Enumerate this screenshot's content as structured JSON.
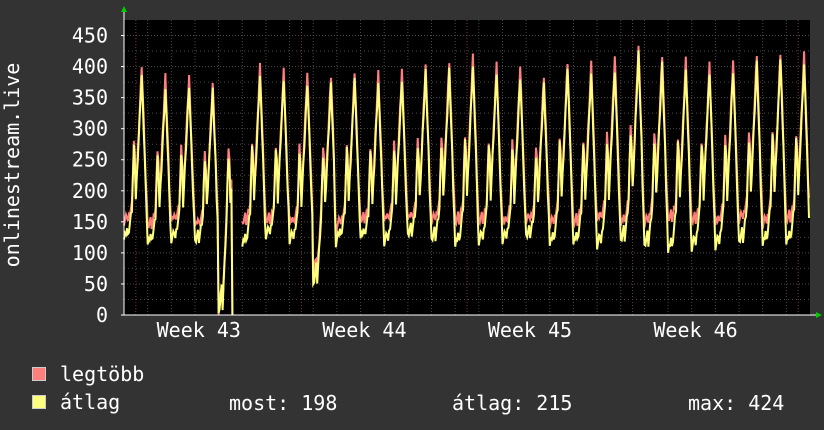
{
  "chart_data": {
    "type": "line",
    "ylabel": "onlinestream.live",
    "ylim": [
      0,
      475
    ],
    "yticks": [
      0,
      50,
      100,
      150,
      200,
      250,
      300,
      350,
      400,
      450
    ],
    "xtick_labels": [
      "Week 43",
      "Week 44",
      "Week 45",
      "Week 46"
    ],
    "grid": true,
    "days_shown": 29,
    "series": [
      {
        "name": "legtöbb",
        "color": "#ff7f7f",
        "day_peaks": [
          405,
          385,
          385,
          375,
          385,
          400,
          395,
          390,
          385,
          395,
          390,
          395,
          405,
          410,
          415,
          405,
          400,
          385,
          410,
          405,
          415,
          435,
          420,
          410,
          405,
          410,
          420,
          425,
          420
        ],
        "day_troughs": [
          150,
          140,
          150,
          145,
          0,
          145,
          150,
          145,
          60,
          145,
          150,
          150,
          155,
          150,
          145,
          150,
          145,
          150,
          145,
          145,
          150,
          145,
          145,
          150,
          150,
          145,
          150,
          145,
          150
        ]
      },
      {
        "name": "átlag",
        "color": "#ffff7f",
        "day_peaks": [
          385,
          365,
          370,
          360,
          370,
          385,
          380,
          375,
          370,
          380,
          375,
          380,
          390,
          395,
          400,
          390,
          385,
          370,
          395,
          390,
          395,
          420,
          405,
          395,
          390,
          395,
          405,
          410,
          405
        ],
        "day_troughs": [
          120,
          115,
          120,
          115,
          0,
          110,
          125,
          120,
          45,
          120,
          125,
          115,
          125,
          120,
          110,
          115,
          120,
          125,
          110,
          115,
          110,
          115,
          110,
          100,
          105,
          110,
          115,
          110,
          115
        ]
      }
    ]
  },
  "legend": {
    "items": [
      {
        "label": "legtöbb",
        "color": "#ff7f7f"
      },
      {
        "label": "átlag",
        "color": "#ffff7f"
      }
    ]
  },
  "stats": {
    "most": "most: 198",
    "avg": "átlag: 215",
    "max": "max: 424"
  },
  "colors": {
    "background": "#333333",
    "plot_background": "#000000",
    "grid": "#4a4a4a",
    "week_grid": "#7a3a3a",
    "axis_arrow": "#00cc00"
  }
}
